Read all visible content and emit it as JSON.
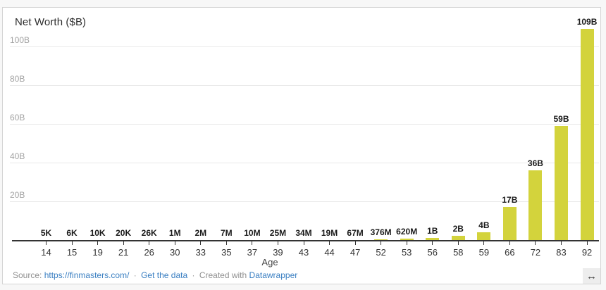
{
  "chart_data": {
    "type": "bar",
    "title": "Net Worth ($B)",
    "xlabel": "Age",
    "ylabel": "Net Worth ($B)",
    "categories": [
      14,
      15,
      19,
      21,
      26,
      30,
      33,
      35,
      37,
      39,
      43,
      44,
      47,
      52,
      53,
      56,
      58,
      59,
      66,
      72,
      83,
      92
    ],
    "values_billions": [
      5e-06,
      6e-06,
      1e-05,
      2e-05,
      2.6e-05,
      0.001,
      0.002,
      0.007,
      0.01,
      0.025,
      0.034,
      0.019,
      0.067,
      0.376,
      0.62,
      1,
      2,
      4,
      17,
      36,
      59,
      109
    ],
    "bar_labels": [
      "5K",
      "6K",
      "10K",
      "20K",
      "26K",
      "1M",
      "2M",
      "7M",
      "10M",
      "25M",
      "34M",
      "19M",
      "67M",
      "376M",
      "620M",
      "1B",
      "2B",
      "4B",
      "17B",
      "36B",
      "59B",
      "109B"
    ],
    "yticks": [
      {
        "label": "20B",
        "value": 20
      },
      {
        "label": "40B",
        "value": 40
      },
      {
        "label": "60B",
        "value": 60
      },
      {
        "label": "80B",
        "value": 80
      },
      {
        "label": "100B",
        "value": 100
      }
    ],
    "ylim": [
      0,
      110
    ],
    "grid": true,
    "legend": false,
    "bar_color": "#d3d33c"
  },
  "footer": {
    "source_label": "Source:",
    "source_link": "https://finmasters.com/",
    "separator": "·",
    "get_data_label": "Get the data",
    "created_with_label": "Created with",
    "tool_link": "Datawrapper"
  },
  "icons": {
    "resize_handle": "↔"
  }
}
